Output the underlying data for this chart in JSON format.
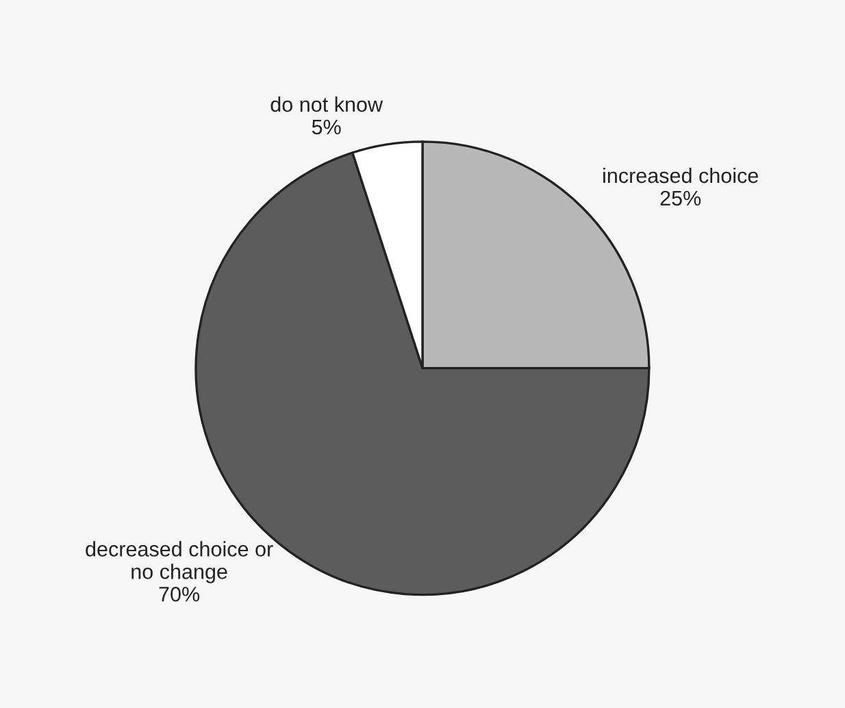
{
  "chart_data": {
    "type": "pie",
    "categories": [
      "increased choice",
      "decreased choice or\nno change",
      "do not know"
    ],
    "values": [
      25,
      70,
      5
    ],
    "value_labels": [
      "25%",
      "70%",
      "5%"
    ],
    "colors": [
      "#b8b8b8",
      "#5c5c5c",
      "#ffffff"
    ]
  }
}
